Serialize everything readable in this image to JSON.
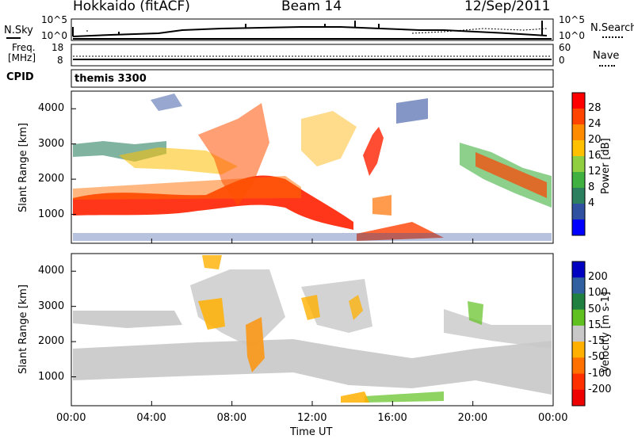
{
  "header": {
    "station": "Hokkaido (fitACF)",
    "beam": "Beam 14",
    "date": "12/Sep/2011"
  },
  "panels": {
    "nsky": {
      "label": "N.Sky",
      "right_label": "N.Search",
      "left_ticks": [
        "10^5",
        "10^0"
      ],
      "right_ticks": [
        "10^5",
        "10^0"
      ]
    },
    "freq": {
      "label_line1": "Freq.",
      "label_line2": "[MHz]",
      "right_label": "Nave",
      "left_ticks": [
        "18",
        "8"
      ],
      "right_ticks": [
        "60",
        "0"
      ]
    },
    "cpid": {
      "label": "CPID",
      "value": "themis 3300"
    }
  },
  "chart_data": [
    {
      "type": "heatmap",
      "title": "",
      "xlabel": "Time UT",
      "ylabel": "Slant Range [km]",
      "x_ticks": [
        "00:00",
        "04:00",
        "08:00",
        "12:00",
        "16:00",
        "20:00",
        "00:00"
      ],
      "y_ticks": [
        "1000",
        "2000",
        "3000",
        "4000"
      ],
      "xlim": [
        "00:00",
        "24:00"
      ],
      "ylim": [
        180,
        4500
      ],
      "colorbar": {
        "label": "Power [dB]",
        "ticks": [
          "28",
          "24",
          "20",
          "16",
          "12",
          "8",
          "4"
        ],
        "colors": [
          "#ff0000",
          "#ff4400",
          "#ff8c00",
          "#ffc000",
          "#90d040",
          "#40b040",
          "#2c8060",
          "#3050a0",
          "#0000ff"
        ]
      }
    },
    {
      "type": "heatmap",
      "title": "",
      "xlabel": "Time UT",
      "ylabel": "Slant Range [km]",
      "x_ticks": [
        "00:00",
        "04:00",
        "08:00",
        "12:00",
        "16:00",
        "20:00",
        "00:00"
      ],
      "y_ticks": [
        "1000",
        "2000",
        "3000",
        "4000"
      ],
      "xlim": [
        "00:00",
        "24:00"
      ],
      "ylim": [
        180,
        4500
      ],
      "colorbar": {
        "label": "Velocity [m s-1]",
        "ticks": [
          "200",
          "100",
          "50",
          "15",
          "-15",
          "-50",
          "-100",
          "-200"
        ],
        "colors": [
          "#0000c0",
          "#3060a0",
          "#208040",
          "#60c020",
          "#c8c8c8",
          "#ffb000",
          "#ff7000",
          "#ff3000",
          "#ee0000"
        ]
      }
    }
  ]
}
